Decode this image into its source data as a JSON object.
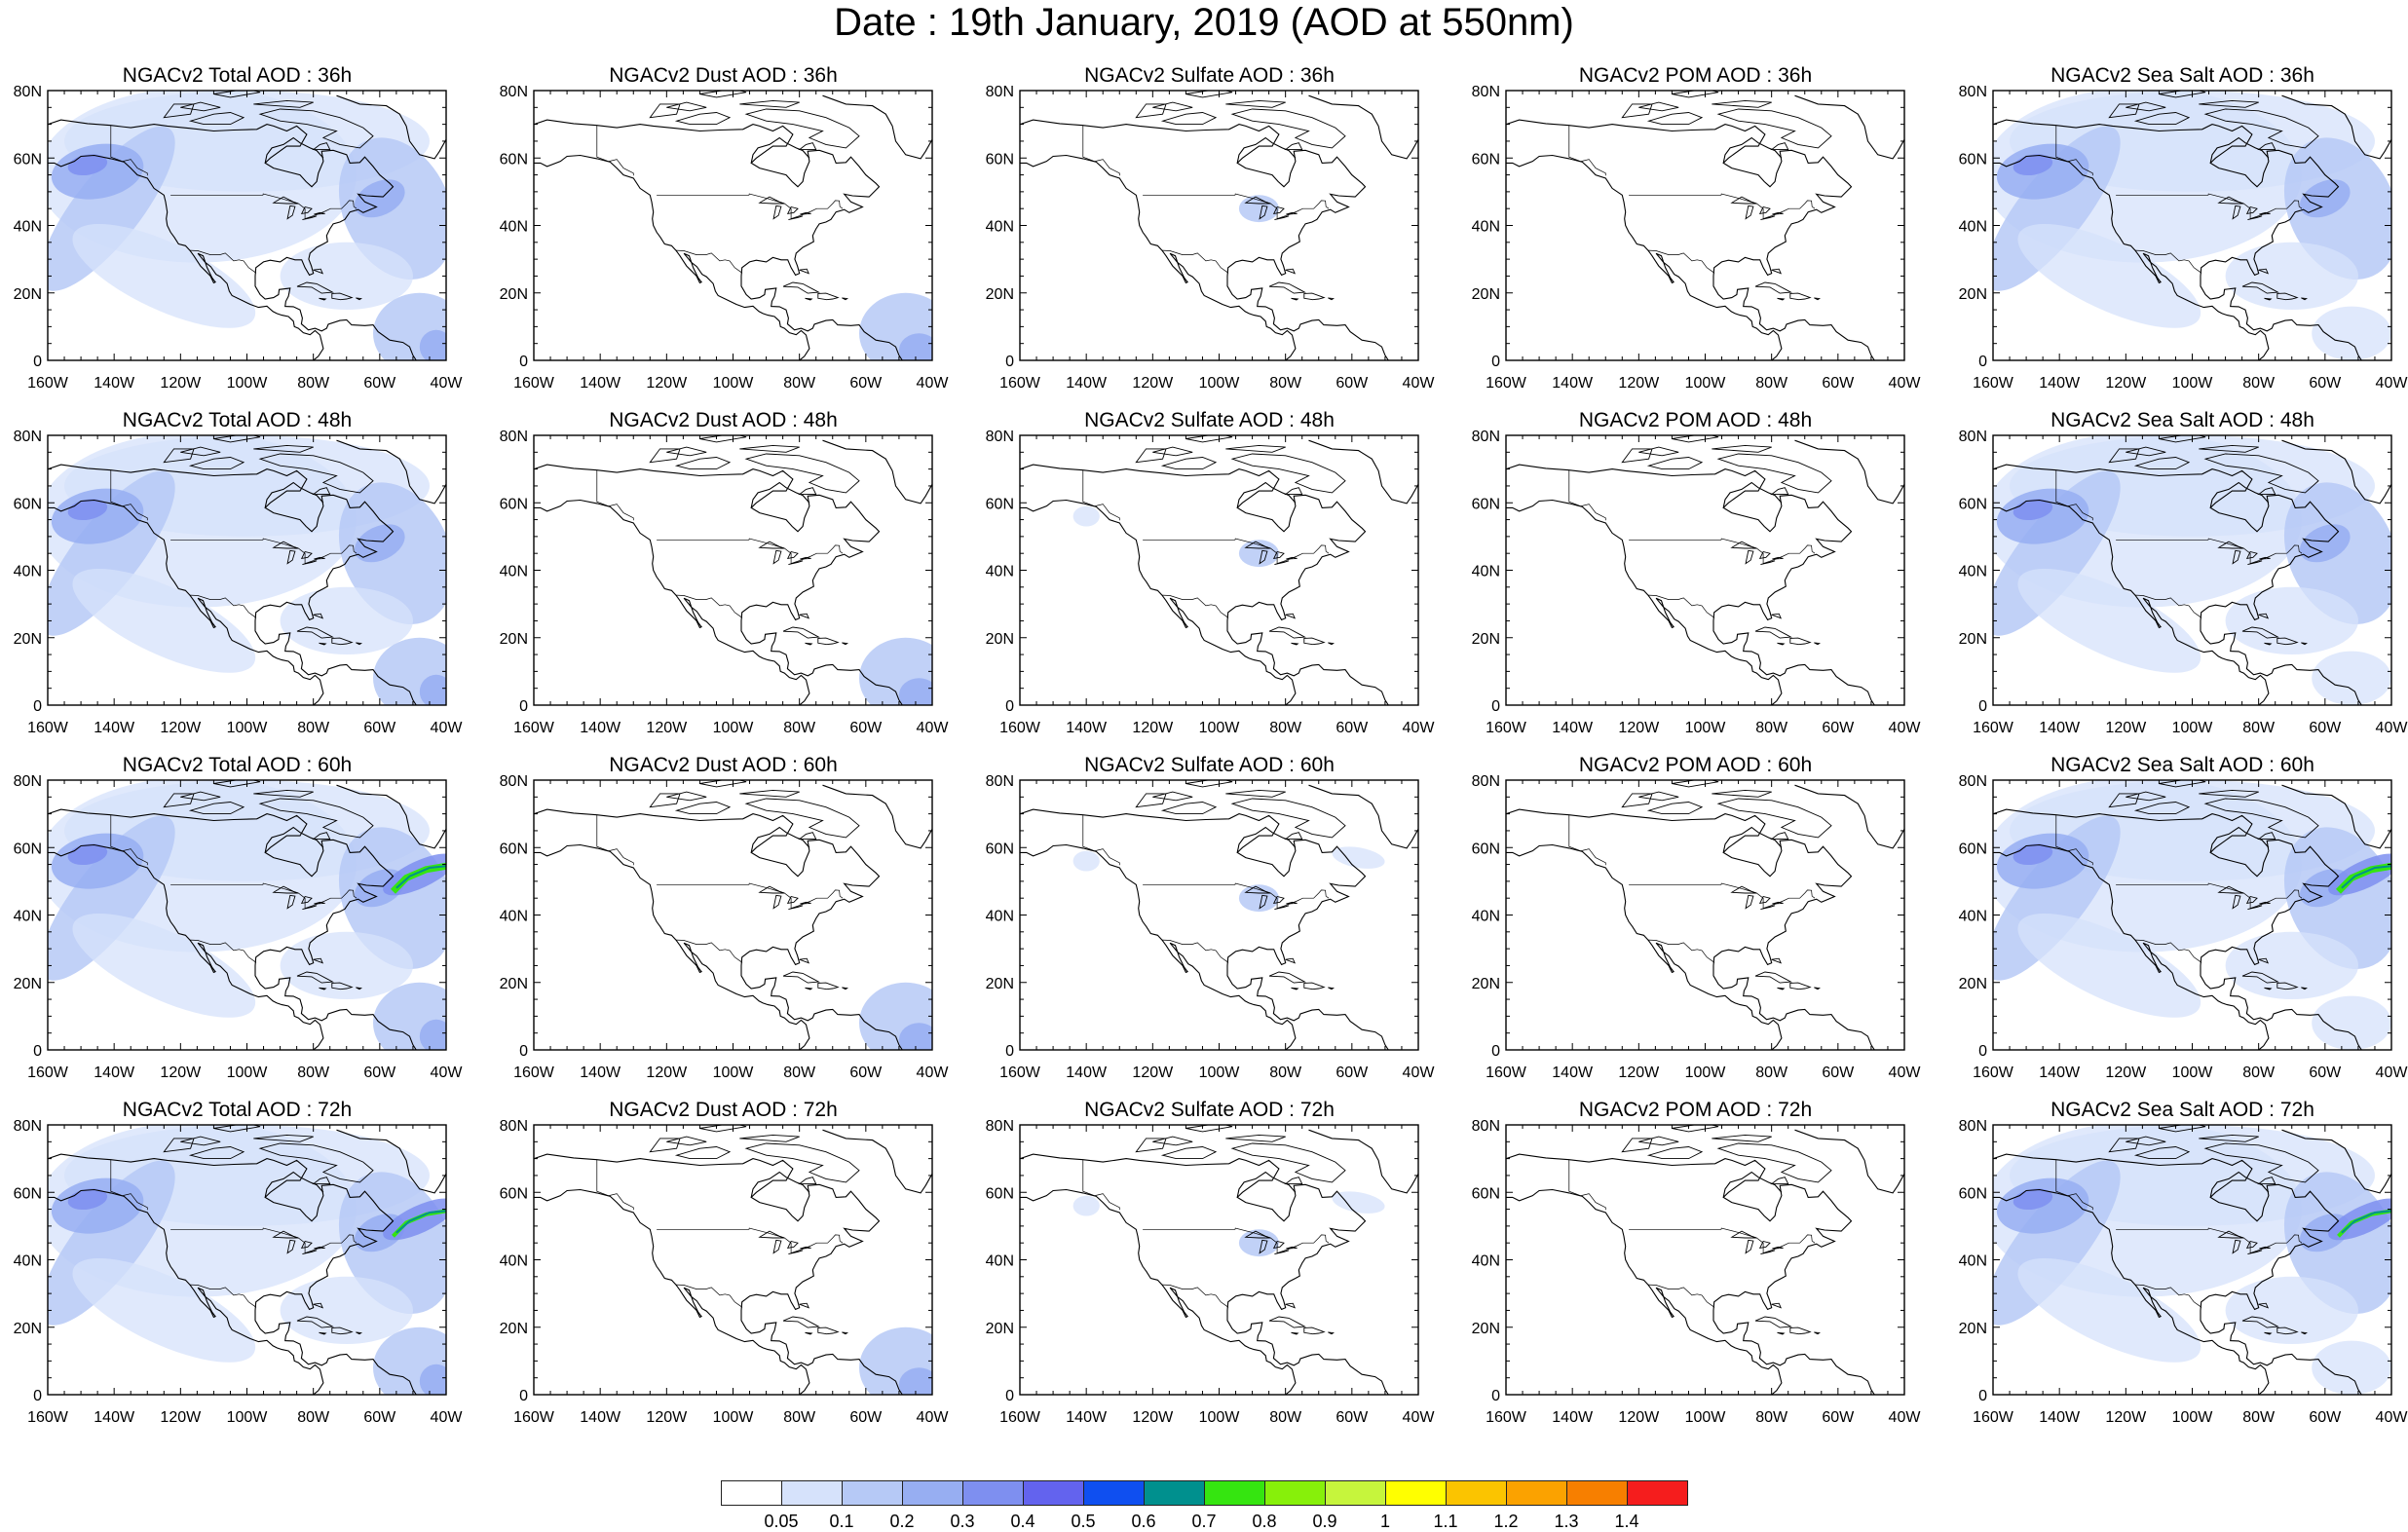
{
  "title": "Date : 19th January, 2019 (AOD at 550nm)",
  "column_titles": [
    [
      "NGACv2 Total AOD : 36h",
      "NGACv2 Dust AOD : 36h",
      "NGACv2 Sulfate AOD : 36h",
      "NGACv2 POM AOD : 36h",
      "NGACv2 Sea Salt AOD : 36h"
    ],
    [
      "NGACv2 Total AOD : 48h",
      "NGACv2 Dust AOD : 48h",
      "NGACv2 Sulfate AOD : 48h",
      "NGACv2 POM AOD : 48h",
      "NGACv2 Sea Salt AOD : 48h"
    ],
    [
      "NGACv2 Total AOD : 60h",
      "NGACv2 Dust AOD : 60h",
      "NGACv2 Sulfate AOD : 60h",
      "NGACv2 POM AOD : 60h",
      "NGACv2 Sea Salt AOD : 60h"
    ],
    [
      "NGACv2 Total AOD : 72h",
      "NGACv2 Dust AOD : 72h",
      "NGACv2 Sulfate AOD : 72h",
      "NGACv2 POM AOD : 72h",
      "NGACv2 Sea Salt  AOD : 72h"
    ]
  ],
  "lat_labels": [
    "80N",
    "60N",
    "40N",
    "20N",
    "0"
  ],
  "lon_labels": [
    "160W",
    "140W",
    "120W",
    "100W",
    "80W",
    "60W",
    "40W"
  ],
  "map": {
    "lon_range": [
      -160,
      -40
    ],
    "lat_range": [
      0,
      80
    ]
  },
  "colorbar": {
    "labels": [
      "0.05",
      "0.1",
      "0.2",
      "0.3",
      "0.4",
      "0.5",
      "0.6",
      "0.7",
      "0.8",
      "0.9",
      "1",
      "1.1",
      "1.2",
      "1.3",
      "1.4"
    ],
    "colors": [
      "#ffffff",
      "#d6e2fb",
      "#b6c9f6",
      "#97aef2",
      "#7e8ff0",
      "#6363ee",
      "#0f4ff0",
      "#00908e",
      "#35e510",
      "#87f00a",
      "#c6f53c",
      "#ffff00",
      "#fbc400",
      "#fba200",
      "#f77f00",
      "#f51d1d"
    ]
  }
}
